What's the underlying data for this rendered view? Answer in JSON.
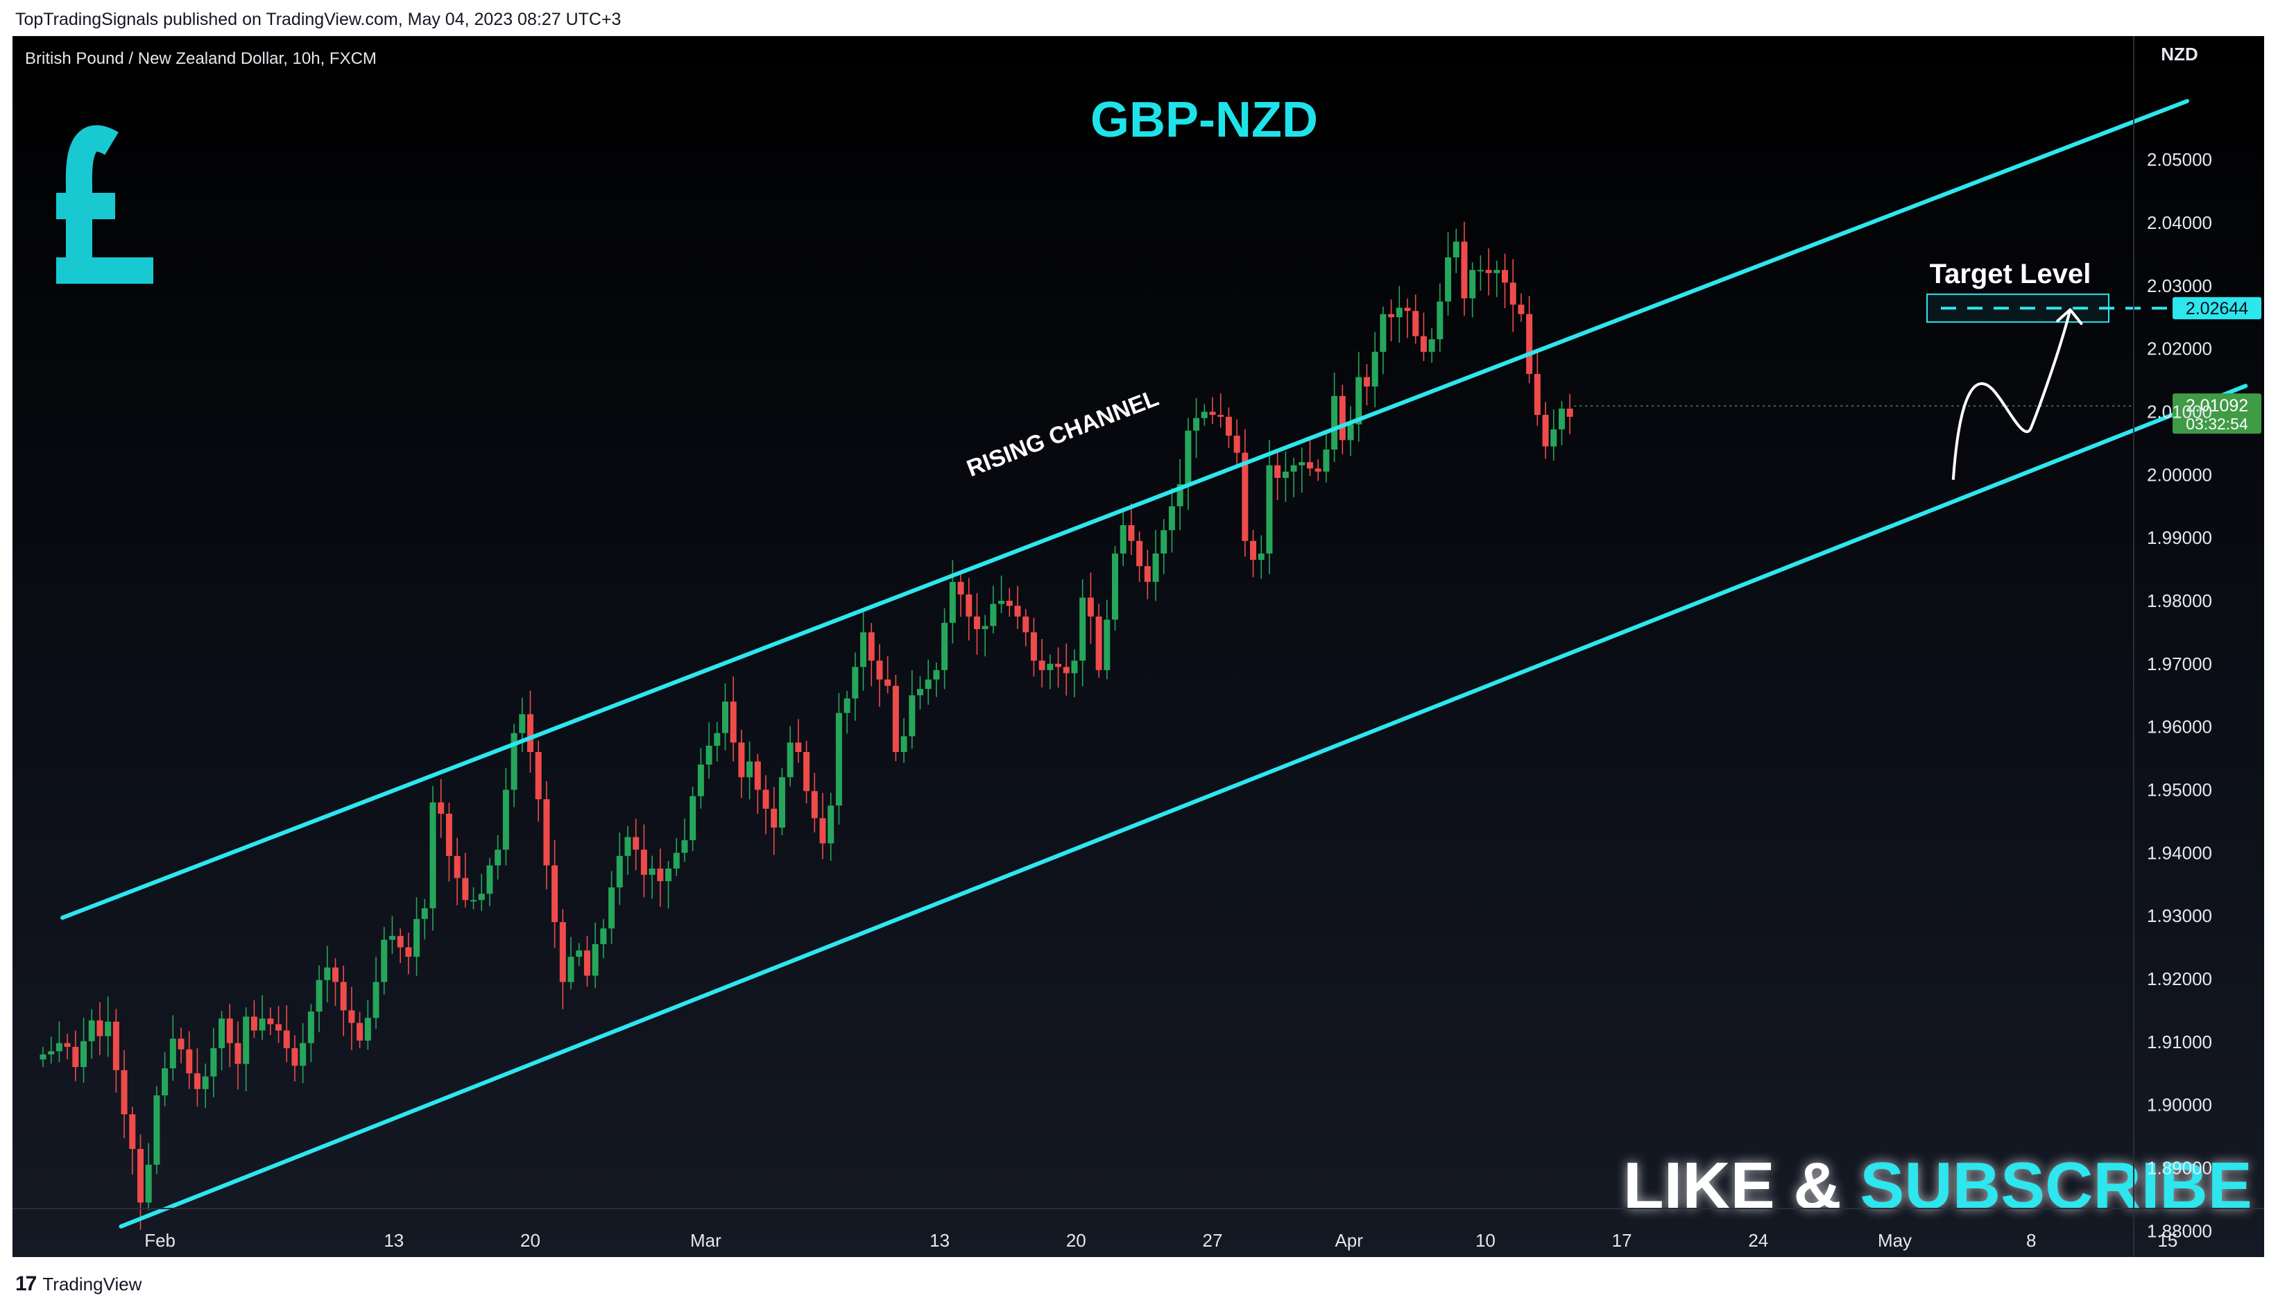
{
  "header": {
    "published_text": "TopTradingSignals published on TradingView.com, May 04, 2023 08:27 UTC+3"
  },
  "footer": {
    "brand_mark": "17",
    "brand_name": "TradingView"
  },
  "colors": {
    "up": "#26a65b",
    "down": "#ef4b4b",
    "channel": "#2ee6ee",
    "accent_text": "#1fe3ea",
    "axis_text": "#e6e8ee",
    "last_price_bg": "#3f9b45",
    "target_bg": "#2ee6ee"
  },
  "chart_data": {
    "type": "candlestick",
    "symbol_info": "British Pound / New Zealand Dollar, 10h, FXCM",
    "title": "GBP-NZD",
    "currency_label": "NZD",
    "ylim": [
      1.8755,
      2.0615
    ],
    "y_ticks": [
      "2.05000",
      "2.04000",
      "2.03000",
      "2.02000",
      "2.01000",
      "2.00000",
      "1.99000",
      "1.98000",
      "1.97000",
      "1.96000",
      "1.95000",
      "1.94000",
      "1.93000",
      "1.92000",
      "1.91000",
      "1.90000",
      "1.89000",
      "1.88000"
    ],
    "x_ticks": [
      {
        "label": "Feb",
        "date": "2023-02-01"
      },
      {
        "label": "13",
        "date": "2023-02-13"
      },
      {
        "label": "20",
        "date": "2023-02-20"
      },
      {
        "label": "Mar",
        "date": "2023-03-01"
      },
      {
        "label": "13",
        "date": "2023-03-13"
      },
      {
        "label": "20",
        "date": "2023-03-20"
      },
      {
        "label": "27",
        "date": "2023-03-27"
      },
      {
        "label": "Apr",
        "date": "2023-04-03"
      },
      {
        "label": "10",
        "date": "2023-04-10"
      },
      {
        "label": "17",
        "date": "2023-04-17"
      },
      {
        "label": "24",
        "date": "2023-04-24"
      },
      {
        "label": "May",
        "date": "2023-05-01"
      },
      {
        "label": "8",
        "date": "2023-05-08"
      },
      {
        "label": "15",
        "date": "2023-05-15"
      }
    ],
    "upper_channel": [
      [
        "2023-01-27",
        1.9297
      ],
      [
        "2023-05-16",
        2.0593
      ]
    ],
    "lower_channel": [
      [
        "2023-01-30",
        1.8807
      ],
      [
        "2023-05-19",
        2.0141
      ]
    ],
    "channel_label": "RISING CHANNEL",
    "target": {
      "label": "Target Level",
      "value": "2.02644"
    },
    "last_price": {
      "value": "2.01092",
      "countdown": "03:32:54"
    },
    "projection": [
      [
        "2023-05-04",
        1.9992
      ],
      [
        "2023-05-06",
        2.0136
      ],
      [
        "2023-05-08",
        2.0075
      ],
      [
        "2023-05-10",
        2.0262
      ]
    ],
    "candle_start": "2023-01-26",
    "candle_interval_hours": 10,
    "closes": [
      1.908,
      1.9085,
      1.9098,
      1.9092,
      1.906,
      1.9101,
      1.9134,
      1.9109,
      1.9132,
      1.9055,
      1.8985,
      1.893,
      1.8845,
      1.8905,
      1.9015,
      1.9058,
      1.9105,
      1.9088,
      1.905,
      1.9025,
      1.9045,
      1.909,
      1.9137,
      1.9098,
      1.9065,
      1.914,
      1.9118,
      1.9137,
      1.9128,
      1.9118,
      1.909,
      1.9062,
      1.9098,
      1.9148,
      1.9198,
      1.9218,
      1.9195,
      1.915,
      1.913,
      1.9102,
      1.9138,
      1.9195,
      1.9262,
      1.9268,
      1.925,
      1.9235,
      1.9295,
      1.9312,
      1.948,
      1.9462,
      1.9395,
      1.936,
      1.9325,
      1.9325,
      1.9335,
      1.938,
      1.9405,
      1.95,
      1.959,
      1.962,
      1.956,
      1.9485,
      1.938,
      1.929,
      1.9195,
      1.9235,
      1.9245,
      1.9205,
      1.9255,
      1.928,
      1.9345,
      1.9395,
      1.9425,
      1.9405,
      1.9365,
      1.9375,
      1.9355,
      1.9375,
      1.94,
      1.942,
      1.949,
      1.954,
      1.957,
      1.959,
      1.964,
      1.9575,
      1.952,
      1.9545,
      1.95,
      1.947,
      1.944,
      1.952,
      1.9575,
      1.956,
      1.9498,
      1.9455,
      1.9415,
      1.9475,
      1.9622,
      1.9645,
      1.9695,
      1.975,
      1.9705,
      1.9675,
      1.9665,
      1.956,
      1.9585,
      1.965,
      1.966,
      1.9675,
      1.969,
      1.9765,
      1.983,
      1.981,
      1.9775,
      1.9755,
      1.976,
      1.9795,
      1.98,
      1.9792,
      1.9775,
      1.975,
      1.9705,
      1.969,
      1.97,
      1.9695,
      1.9685,
      1.9705,
      1.9805,
      1.9775,
      1.969,
      1.977,
      1.9875,
      1.992,
      1.9895,
      1.9855,
      1.983,
      1.9875,
      1.9912,
      1.995,
      1.9985,
      2.007,
      2.009,
      2.01,
      2.0095,
      2.0092,
      2.0062,
      2.0035,
      1.9895,
      1.9865,
      1.9875,
      2.0015,
      1.9995,
      2.0005,
      2.0015,
      2.002,
      2.001,
      2.0005,
      2.004,
      2.0125,
      2.0055,
      2.008,
      2.0155,
      2.014,
      2.0195,
      2.0255,
      2.025,
      2.0265,
      2.026,
      2.022,
      2.0195,
      2.0215,
      2.0275,
      2.0345,
      2.037,
      2.028,
      2.0325,
      2.0325,
      2.032,
      2.0325,
      2.0305,
      2.027,
      2.0255,
      2.016,
      2.0095,
      2.0045,
      2.0072,
      2.0105,
      2.0092
    ]
  }
}
